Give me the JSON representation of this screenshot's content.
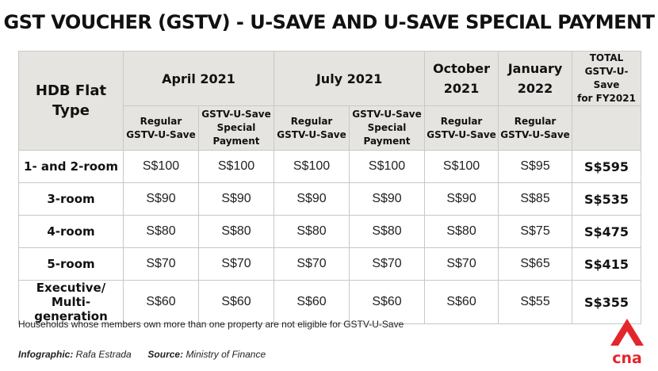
{
  "title": "GST VOUCHER (GSTV) - U-SAVE AND U-SAVE SPECIAL PAYMENT",
  "header": {
    "flat_line1": "HDB Flat",
    "flat_line2": "Type",
    "april": "April 2021",
    "july": "July 2021",
    "october_line1": "October",
    "october_line2": "2021",
    "january_line1": "January",
    "january_line2": "2022",
    "total_line1": "TOTAL",
    "total_line2": "GSTV-U-Save",
    "total_line3": "for FY2021",
    "regular_line1": "Regular",
    "regular_line2": "GSTV-U-Save",
    "special_line1": "GSTV-U-Save",
    "special_line2": "Special",
    "special_line3": "Payment"
  },
  "rows": [
    {
      "label_line1": "1- and 2-room",
      "label_line2": "",
      "values": [
        "S$100",
        "S$100",
        "S$100",
        "S$100",
        "S$100",
        "S$95"
      ],
      "total": "S$595"
    },
    {
      "label_line1": "3-room",
      "label_line2": "",
      "values": [
        "S$90",
        "S$90",
        "S$90",
        "S$90",
        "S$90",
        "S$85"
      ],
      "total": "S$535"
    },
    {
      "label_line1": "4-room",
      "label_line2": "",
      "values": [
        "S$80",
        "S$80",
        "S$80",
        "S$80",
        "S$80",
        "S$75"
      ],
      "total": "S$475"
    },
    {
      "label_line1": "5-room",
      "label_line2": "",
      "values": [
        "S$70",
        "S$70",
        "S$70",
        "S$70",
        "S$70",
        "S$65"
      ],
      "total": "S$415"
    },
    {
      "label_line1": "Executive/",
      "label_line2": "Multi-generation",
      "values": [
        "S$60",
        "S$60",
        "S$60",
        "S$60",
        "S$60",
        "S$55"
      ],
      "total": "S$355"
    }
  ],
  "footnote": "Households whose members own more than one property are not eligible for GSTV-U-Save",
  "credits": {
    "infographic_label": "Infographic:",
    "infographic_value": "Rafa Estrada",
    "source_label": "Source:",
    "source_value": "Ministry of Finance"
  },
  "logo": {
    "text": "cna",
    "icon": "cna-logo-icon",
    "color": "#e3262c"
  }
}
